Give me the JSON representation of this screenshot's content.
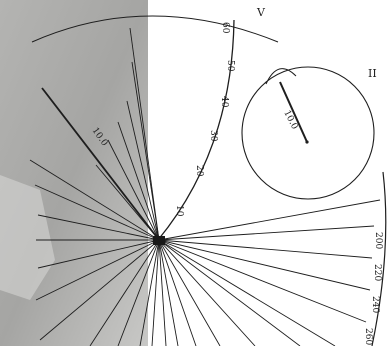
{
  "figure": {
    "panel_labels": {
      "upper": "V",
      "right": "II"
    },
    "upper_scale_ticks": [
      "10",
      "20",
      "30",
      "40",
      "50",
      "60"
    ],
    "radius_label_upper": "10.0",
    "circle_radius_label": "10.0",
    "right_scale_ticks": [
      "200",
      "220",
      "240",
      "260"
    ],
    "colors": {
      "ink": "#1e1e1e",
      "paper": "#ffffff",
      "shadow": "#a8a8a6"
    }
  }
}
